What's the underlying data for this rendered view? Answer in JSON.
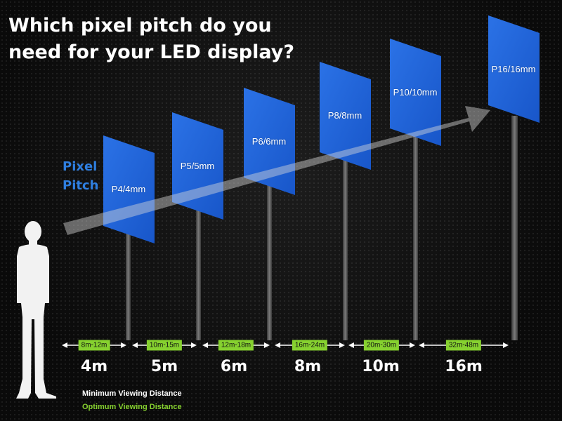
{
  "title": {
    "line1": "Which pixel pitch do you",
    "line2": "need for your LED display?"
  },
  "axis_label": {
    "line1": "Pixel",
    "line2": "Pitch"
  },
  "panels": [
    {
      "label": "P4/4mm"
    },
    {
      "label": "P5/5mm"
    },
    {
      "label": "P6/6mm"
    },
    {
      "label": "P8/8mm"
    },
    {
      "label": "P10/10mm"
    },
    {
      "label": "P16/16mm"
    }
  ],
  "ranges": [
    {
      "optimum": "8m-12m",
      "minimum": "4m"
    },
    {
      "optimum": "10m-15m",
      "minimum": "5m"
    },
    {
      "optimum": "12m-18m",
      "minimum": "6m"
    },
    {
      "optimum": "16m-24m",
      "minimum": "8m"
    },
    {
      "optimum": "20m-30m",
      "minimum": "10m"
    },
    {
      "optimum": "32m-48m",
      "minimum": "16m"
    }
  ],
  "legend": {
    "minimum": "Minimum Viewing Distance",
    "optimum": "Optimum Viewing Distance"
  },
  "colors": {
    "panel_blue": "#1f63d8",
    "label_blue": "#2f7fe0",
    "badge_green": "#86d12f",
    "background": "#0d0d0d"
  },
  "icons": [
    "person-silhouette",
    "double-arrow",
    "trend-arrow"
  ]
}
